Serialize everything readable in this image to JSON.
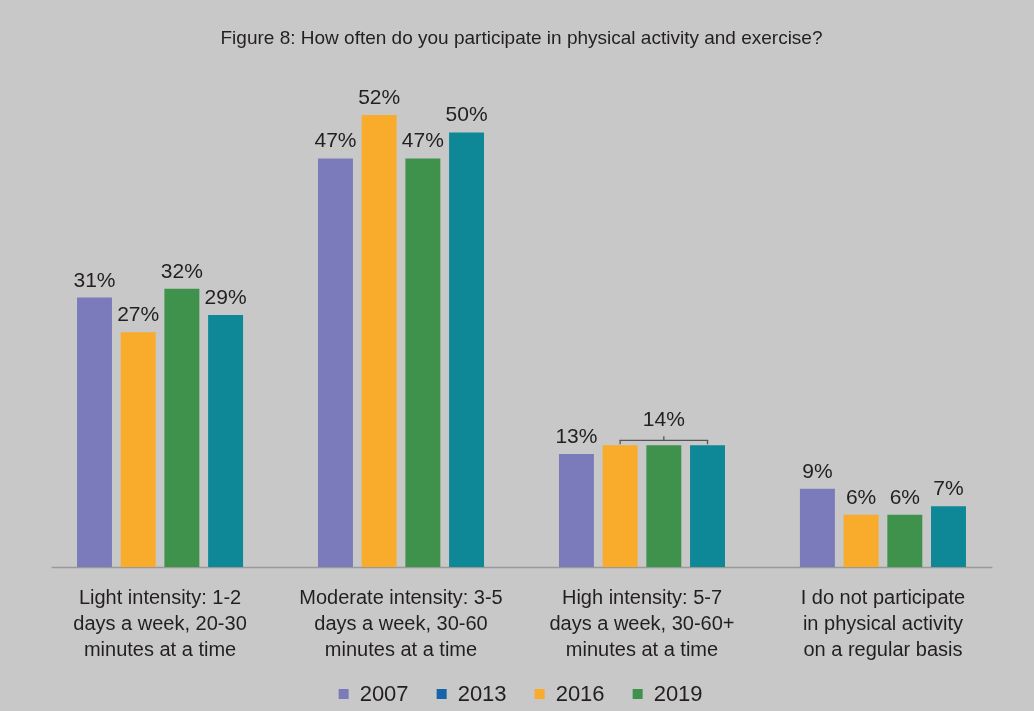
{
  "chart_data": {
    "type": "bar",
    "title": "Figure 8: How often do you participate in physical activity and exercise?",
    "categories": [
      "Light intensity: 1-2\ndays a week, 20-30\nminutes at a time",
      "Moderate intensity: 3-5\ndays a week, 30-60\nminutes at a time",
      "High intensity: 5-7\ndays a week, 30-60+\nminutes at a time",
      "I do not participate\nin physical activity\non a regular basis"
    ],
    "series": [
      {
        "name": "2007",
        "color": "#7b7bbb",
        "values": [
          31,
          47,
          13,
          9
        ],
        "value_labels": [
          "31%",
          "47%",
          "13%",
          "9%"
        ]
      },
      {
        "name": "2013",
        "color": "#1565a8",
        "values": [
          null,
          null,
          null,
          null
        ]
      },
      {
        "name": "2016",
        "color": "#f9ab2b",
        "values": [
          27,
          52,
          14,
          6
        ],
        "value_labels": [
          "27%",
          "52%",
          null,
          "6%"
        ]
      },
      {
        "name": "2019",
        "color": "#3e924c",
        "values": [
          32,
          47,
          14,
          6
        ],
        "value_labels": [
          "32%",
          "47%",
          "14%",
          "6%"
        ]
      },
      {
        "color": "#0e8796",
        "values": [
          29,
          50,
          14,
          7
        ],
        "value_labels": [
          "29%",
          "50%",
          null,
          "7%"
        ]
      }
    ],
    "tick_labels": "x",
    "legend": "bottom"
  }
}
